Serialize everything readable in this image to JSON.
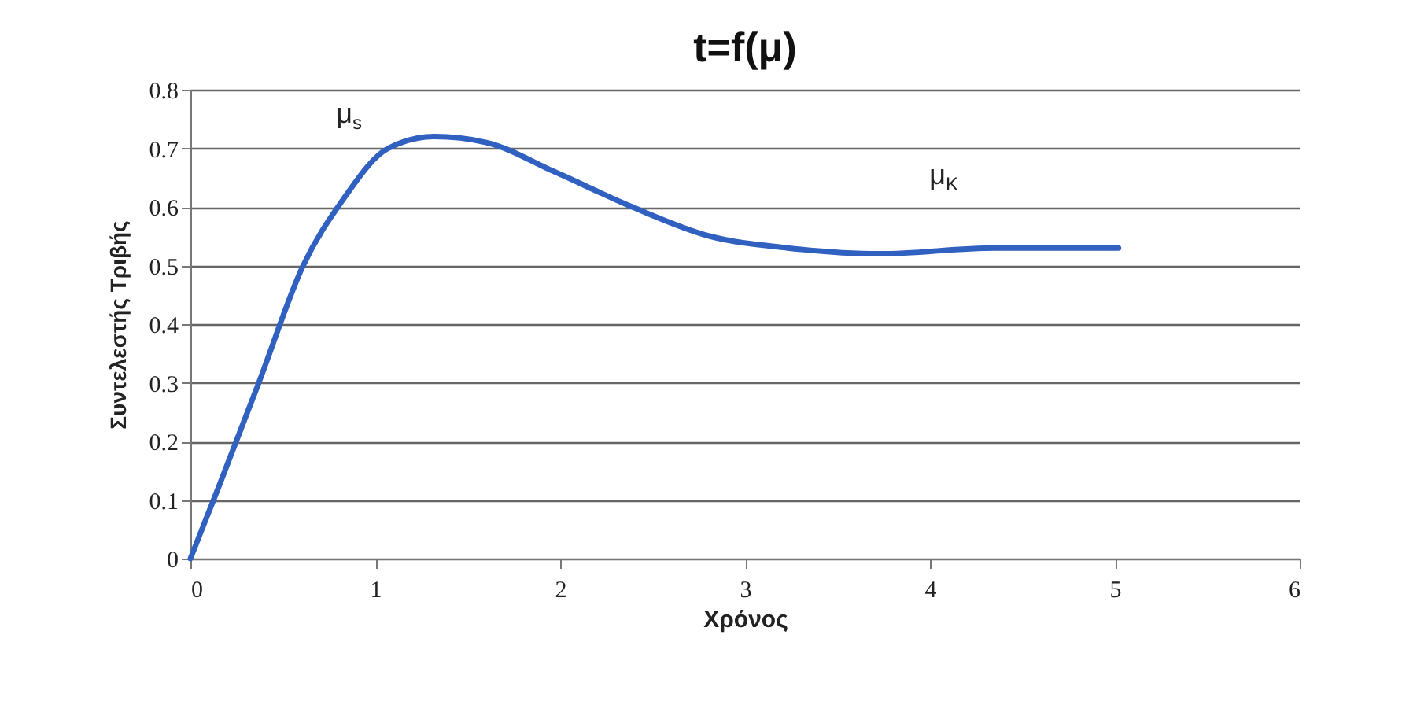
{
  "chart_data": {
    "type": "line",
    "title": "t=f(μ)",
    "xlabel": "Χρόνος",
    "ylabel": "Συντελεστής Τριβής",
    "x": [
      0,
      0.15,
      0.37,
      0.61,
      0.82,
      1.07,
      1.32,
      1.6,
      1.97,
      2.39,
      2.81,
      3.23,
      3.73,
      4.35,
      5.02
    ],
    "series": [
      {
        "color": "#3060c0",
        "values": [
          0,
          0.12,
          0.3,
          0.5,
          0.61,
          0.7,
          0.72,
          0.71,
          0.66,
          0.6,
          0.55,
          0.53,
          0.52,
          0.53,
          0.53
        ]
      }
    ],
    "xlim": [
      0,
      6
    ],
    "xticks": [
      0,
      1,
      2,
      3,
      4,
      5,
      6
    ],
    "ylim": [
      0,
      0.8
    ],
    "yticks": [
      0,
      0.1,
      0.2,
      0.3,
      0.4,
      0.5,
      0.6,
      0.7,
      0.8
    ],
    "grid": "y",
    "marker": "none",
    "line_style": "solid",
    "annotations": [
      "μ$_{s}$",
      "μ$_{K}$"
    ]
  }
}
